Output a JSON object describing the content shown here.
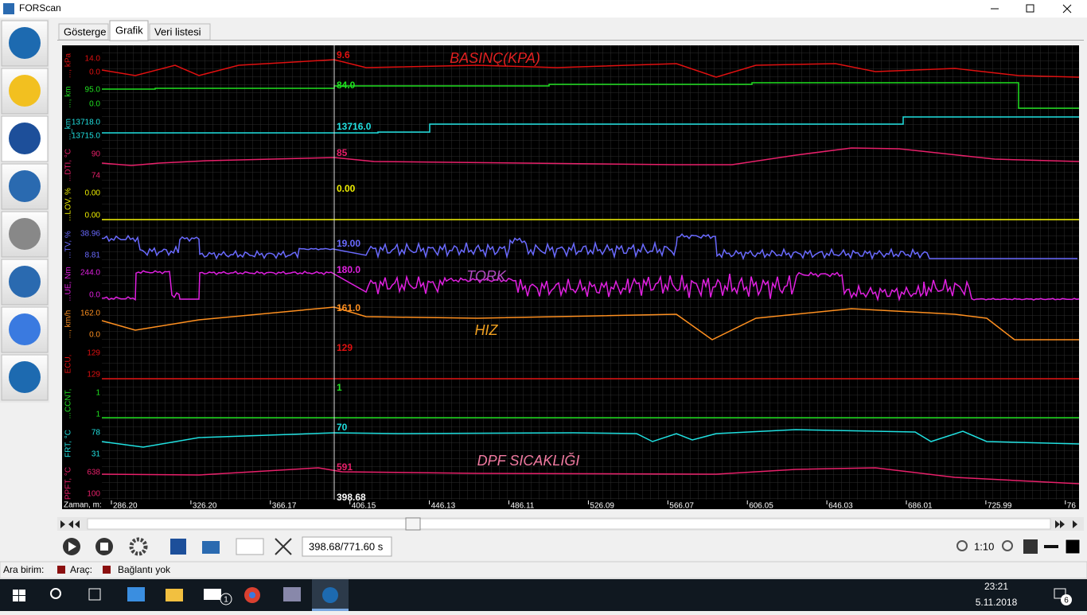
{
  "window": {
    "title": "FORScan"
  },
  "tabs": [
    "Gösterge",
    "Grafik",
    "Veri listesi"
  ],
  "graph": {
    "lanes": [
      {
        "label": "..., kPa",
        "color": "#e01010",
        "ticks": [
          "14.0",
          "0.0"
        ],
        "value": "9.6"
      },
      {
        "label": "..., km",
        "color": "#20e020",
        "ticks": [
          "95.0",
          "0.0"
        ],
        "value": "84.0"
      },
      {
        "label": "..._km",
        "color": "#20e0e0",
        "ticks": [
          "13718.0",
          "13715.0"
        ],
        "value": "13716.0"
      },
      {
        "label": "...DTI, °C",
        "color": "#e8206a",
        "ticks": [
          "90",
          "74"
        ],
        "value": "85"
      },
      {
        "label": "...LOV, %",
        "color": "#f0f000",
        "ticks": [
          "0.00",
          "0.00"
        ],
        "value": "0.00"
      },
      {
        "label": "...TV, %",
        "color": "#6a6aff",
        "ticks": [
          "38.96",
          "8.81"
        ],
        "value": "19.00"
      },
      {
        "label": "...UE, Nm",
        "color": "#e020e0",
        "ticks": [
          "244.0",
          "0.0"
        ],
        "value": "180.0"
      },
      {
        "label": "..., km/h",
        "color": "#ff9020",
        "ticks": [
          "162.0",
          "0.0"
        ],
        "value": "161.0"
      },
      {
        "label": "ECU, ",
        "color": "#e01010",
        "ticks": [
          "129",
          "129"
        ],
        "value": "129"
      },
      {
        "label": "...CCNT, ",
        "color": "#20e020",
        "ticks": [
          "1",
          "1"
        ],
        "value": "1"
      },
      {
        "label": "FRT, °C",
        "color": "#20e0e0",
        "ticks": [
          "78",
          "31"
        ],
        "value": "70"
      },
      {
        "label": "PPFT, °C",
        "color": "#e8206a",
        "ticks": [
          "638",
          "100"
        ],
        "value": "591"
      }
    ],
    "annotations": [
      "BASINÇ(KPA)",
      "TORK",
      "HIZ",
      "DPF SICAKLIĞI"
    ],
    "time_axis": {
      "label": "Zaman, m:",
      "ticks": [
        "286.20",
        "326.20",
        "366.17",
        "406.15",
        "446.13",
        "486.11",
        "526.09",
        "566.07",
        "606.05",
        "646.03",
        "686.01",
        "725.99",
        "76"
      ]
    },
    "cursor": "398.68"
  },
  "toolbar": {
    "position": "398.68/771.60 s",
    "zoom": "1:10"
  },
  "status": {
    "interface": "Ara birim:",
    "vehicle": "Araç:",
    "connection": "Bağlantı yok"
  },
  "taskbar": {
    "time": "23:21",
    "date": "5.11.2018",
    "notifications": "6",
    "mail_badge": "1"
  }
}
